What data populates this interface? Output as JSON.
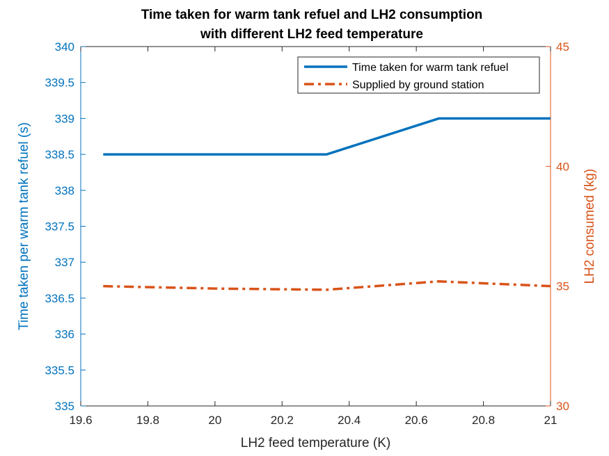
{
  "chart_data": {
    "type": "line",
    "title": [
      "Time taken for warm tank refuel and LH2 consumption",
      "with different LH2 feed temperature"
    ],
    "xlabel": "LH2 feed temperature (K)",
    "ylabel_left": "Time taken per warm tank refuel (s)",
    "ylabel_right": "LH2 consumed (kg)",
    "xlim": [
      19.6,
      21
    ],
    "ylim_left": [
      335,
      340
    ],
    "ylim_right": [
      30,
      45
    ],
    "x_ticks": [
      "19.6",
      "19.8",
      "20",
      "20.2",
      "20.4",
      "20.6",
      "20.8",
      "21"
    ],
    "y_left_ticks": [
      "335",
      "335.5",
      "336",
      "336.5",
      "337",
      "337.5",
      "338",
      "338.5",
      "339",
      "339.5",
      "340"
    ],
    "y_right_ticks": [
      "30",
      "35",
      "40",
      "45"
    ],
    "grid": false,
    "legend_position": "top-right",
    "series": [
      {
        "name": "Time taken for warm tank refuel",
        "axis": "left",
        "color": "#0072BD",
        "style": "solid",
        "x": [
          19.667,
          20.333,
          20.667,
          21.0
        ],
        "y": [
          338.5,
          338.5,
          339.0,
          339.0
        ]
      },
      {
        "name": "Supplied by ground station",
        "axis": "right",
        "color": "#D95319",
        "style": "dash-dot",
        "x": [
          19.667,
          20.0,
          20.333,
          20.667,
          21.0
        ],
        "y": [
          35.0,
          34.9,
          34.85,
          35.2,
          35.0
        ]
      }
    ],
    "colors": {
      "left_axis": "#0072BD",
      "right_axis": "#D95319",
      "axes": "#262626"
    }
  }
}
